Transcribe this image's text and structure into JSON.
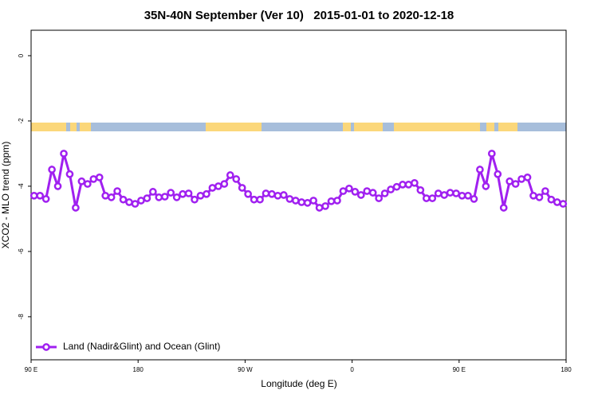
{
  "chart_data": {
    "type": "line",
    "title": "35N-40N September (Ver 10)   2015-01-01 to 2020-12-18",
    "xlabel": "Longitude (deg E)",
    "ylabel": "XCO2 - MLO trend (ppm)",
    "xlim": [
      90,
      540
    ],
    "ylim": [
      -9.32,
      0.78
    ],
    "xticks": [
      {
        "value": 90,
        "label": "90 E"
      },
      180,
      {
        "value": 270,
        "label": "90 W"
      },
      {
        "value": 360,
        "label": "0"
      },
      {
        "value": 450,
        "label": "90 E"
      },
      {
        "value": 540,
        "label": "180"
      }
    ],
    "yticks": [
      0,
      -2,
      -4,
      -6,
      -8
    ],
    "legend": "bottom-left",
    "x": [
      92.5,
      97.5,
      102.5,
      107.5,
      112.5,
      117.5,
      122.5,
      127.5,
      132.5,
      137.5,
      142.5,
      147.5,
      152.5,
      157.5,
      162.5,
      167.5,
      172.5,
      177.5,
      182.5,
      187.5,
      192.5,
      197.5,
      202.5,
      207.5,
      212.5,
      217.5,
      222.5,
      227.5,
      232.5,
      237.5,
      242.5,
      247.5,
      252.5,
      257.5,
      262.5,
      267.5,
      272.5,
      277.5,
      282.5,
      287.5,
      292.5,
      297.5,
      302.5,
      307.5,
      312.5,
      317.5,
      322.5,
      327.5,
      332.5,
      337.5,
      342.5,
      347.5,
      352.5,
      357.5,
      362.5,
      367.5,
      372.5,
      377.5,
      382.5,
      387.5,
      392.5,
      397.5,
      402.5,
      407.5,
      412.5,
      417.5,
      422.5,
      427.5,
      432.5,
      437.5,
      442.5,
      447.5,
      452.5,
      457.5,
      462.5,
      467.5,
      472.5,
      477.5,
      482.5,
      487.5,
      492.5,
      497.5,
      502.5,
      507.5,
      512.5,
      517.5,
      522.5,
      527.5,
      532.5,
      537.5
    ],
    "series": [
      {
        "name": "Land (Nadir&Glint) and Ocean (Glint)",
        "color": "#a020f0",
        "values": [
          -4.29,
          -4.29,
          -4.39,
          -3.49,
          -4.0,
          -3.0,
          -3.63,
          -4.66,
          -3.85,
          -3.93,
          -3.78,
          -3.73,
          -4.29,
          -4.34,
          -4.15,
          -4.41,
          -4.49,
          -4.54,
          -4.44,
          -4.37,
          -4.17,
          -4.34,
          -4.32,
          -4.2,
          -4.34,
          -4.24,
          -4.22,
          -4.41,
          -4.29,
          -4.24,
          -4.05,
          -4.0,
          -3.93,
          -3.66,
          -3.78,
          -4.05,
          -4.24,
          -4.41,
          -4.41,
          -4.22,
          -4.24,
          -4.29,
          -4.27,
          -4.39,
          -4.44,
          -4.49,
          -4.51,
          -4.44,
          -4.66,
          -4.61,
          -4.46,
          -4.44,
          -4.15,
          -4.07,
          -4.17,
          -4.27,
          -4.15,
          -4.2,
          -4.37,
          -4.22,
          -4.1,
          -4.02,
          -3.95,
          -3.95,
          -3.9,
          -4.12,
          -4.37,
          -4.37,
          -4.22,
          -4.27,
          -4.2,
          -4.22,
          -4.29,
          -4.29,
          -4.39,
          -3.49,
          -4.0,
          -3.0,
          -3.63,
          -4.66,
          -3.85,
          -3.93,
          -3.78,
          -3.73,
          -4.29,
          -4.34,
          -4.15,
          -4.41,
          -4.49,
          -4.54
        ]
      }
    ]
  }
}
